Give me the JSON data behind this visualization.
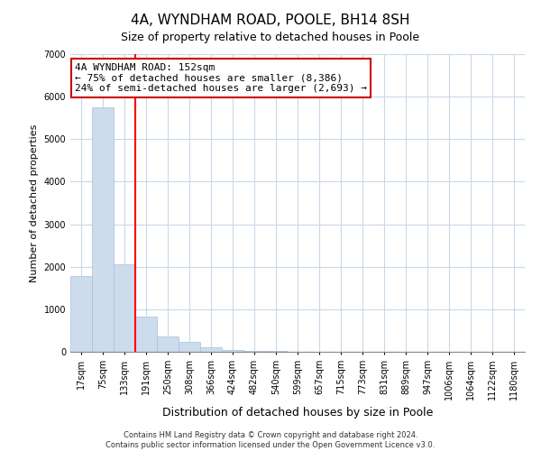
{
  "title_line1": "4A, WYNDHAM ROAD, POOLE, BH14 8SH",
  "title_line2": "Size of property relative to detached houses in Poole",
  "xlabel": "Distribution of detached houses by size in Poole",
  "ylabel": "Number of detached properties",
  "bar_labels": [
    "17sqm",
    "75sqm",
    "133sqm",
    "191sqm",
    "250sqm",
    "308sqm",
    "366sqm",
    "424sqm",
    "482sqm",
    "540sqm",
    "599sqm",
    "657sqm",
    "715sqm",
    "773sqm",
    "831sqm",
    "889sqm",
    "947sqm",
    "1006sqm",
    "1064sqm",
    "1122sqm",
    "1180sqm"
  ],
  "bar_values": [
    1780,
    5750,
    2060,
    820,
    370,
    230,
    110,
    50,
    30,
    20,
    10,
    5,
    3,
    0,
    0,
    0,
    0,
    0,
    0,
    0,
    0
  ],
  "bar_color": "#ccdcec",
  "bar_edge_color": "#a8c0d8",
  "red_line_index": 2,
  "ylim": [
    0,
    7000
  ],
  "yticks": [
    0,
    1000,
    2000,
    3000,
    4000,
    5000,
    6000,
    7000
  ],
  "annotation_title": "4A WYNDHAM ROAD: 152sqm",
  "annotation_line1": "← 75% of detached houses are smaller (8,386)",
  "annotation_line2": "24% of semi-detached houses are larger (2,693) →",
  "annotation_box_color": "#ffffff",
  "annotation_border_color": "#cc0000",
  "footer_line1": "Contains HM Land Registry data © Crown copyright and database right 2024.",
  "footer_line2": "Contains public sector information licensed under the Open Government Licence v3.0.",
  "bg_color": "#ffffff",
  "grid_color": "#c8d8e8",
  "title_fontsize": 11,
  "subtitle_fontsize": 9,
  "ylabel_fontsize": 8,
  "xlabel_fontsize": 9,
  "tick_fontsize": 7,
  "footer_fontsize": 6,
  "annot_fontsize": 8
}
